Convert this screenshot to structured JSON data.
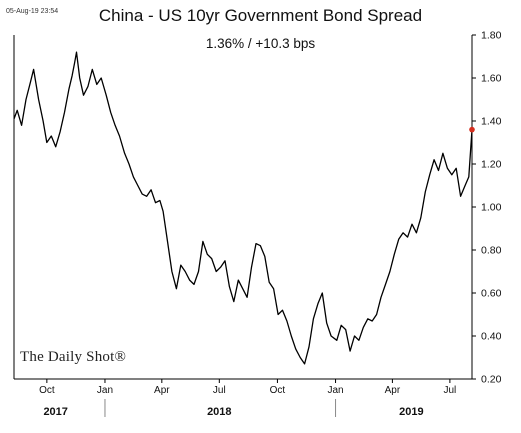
{
  "header": {
    "timestamp": "05-Aug-19 23:54",
    "brand": "The Daily Shot®"
  },
  "colors": {
    "line": "#000000",
    "last_point": "#d62f1f",
    "axis": "#000000",
    "text": "#111111"
  },
  "chart_data": {
    "type": "line",
    "title": "China - US 10yr Government Bond Spread",
    "subtitle": "1.36%  /  +10.3 bps",
    "xlabel": "",
    "ylabel": "",
    "y_axis_position": "right",
    "ylim": [
      0.2,
      1.8
    ],
    "y_ticks": [
      "0.20",
      "0.40",
      "0.60",
      "0.80",
      "1.00",
      "1.20",
      "1.40",
      "1.60",
      "1.80"
    ],
    "x_range": [
      "2017-08-10",
      "2019-08-05"
    ],
    "x_ticks": [
      {
        "date": "2017-10-01",
        "label": "Oct"
      },
      {
        "date": "2018-01-01",
        "label": "Jan"
      },
      {
        "date": "2018-04-01",
        "label": "Apr"
      },
      {
        "date": "2018-07-01",
        "label": "Jul"
      },
      {
        "date": "2018-10-01",
        "label": "Oct"
      },
      {
        "date": "2019-01-01",
        "label": "Jan"
      },
      {
        "date": "2019-04-01",
        "label": "Apr"
      },
      {
        "date": "2019-07-01",
        "label": "Jul"
      }
    ],
    "year_labels": [
      {
        "date": "2017-10-15",
        "label": "2017"
      },
      {
        "date": "2018-07-01",
        "label": "2018"
      },
      {
        "date": "2019-05-01",
        "label": "2019"
      }
    ],
    "year_separators": [
      "2018-01-01",
      "2019-01-01"
    ],
    "grid": false,
    "last_point": {
      "x": "2019-08-05",
      "y": 1.36
    },
    "series": [
      {
        "x": [
          "2017-08-10",
          "2017-08-15",
          "2017-08-22",
          "2017-08-29",
          "2017-09-05",
          "2017-09-10",
          "2017-09-18",
          "2017-09-25",
          "2017-10-01",
          "2017-10-08",
          "2017-10-15",
          "2017-10-22",
          "2017-10-29",
          "2017-11-05",
          "2017-11-10",
          "2017-11-14",
          "2017-11-17",
          "2017-11-22",
          "2017-11-28",
          "2017-12-05",
          "2017-12-12",
          "2017-12-19",
          "2017-12-26",
          "2018-01-03",
          "2018-01-10",
          "2018-01-17",
          "2018-01-24",
          "2018-02-01",
          "2018-02-08",
          "2018-02-15",
          "2018-02-22",
          "2018-03-01",
          "2018-03-08",
          "2018-03-15",
          "2018-03-22",
          "2018-03-29",
          "2018-04-03",
          "2018-04-10",
          "2018-04-17",
          "2018-04-24",
          "2018-05-01",
          "2018-05-08",
          "2018-05-15",
          "2018-05-22",
          "2018-05-29",
          "2018-06-05",
          "2018-06-12",
          "2018-06-19",
          "2018-06-26",
          "2018-07-03",
          "2018-07-10",
          "2018-07-17",
          "2018-07-24",
          "2018-07-31",
          "2018-08-07",
          "2018-08-14",
          "2018-08-21",
          "2018-08-28",
          "2018-09-04",
          "2018-09-11",
          "2018-09-18",
          "2018-09-25",
          "2018-10-02",
          "2018-10-09",
          "2018-10-16",
          "2018-10-23",
          "2018-10-30",
          "2018-11-06",
          "2018-11-13",
          "2018-11-20",
          "2018-11-27",
          "2018-12-04",
          "2018-12-11",
          "2018-12-18",
          "2018-12-25",
          "2019-01-03",
          "2019-01-10",
          "2019-01-17",
          "2019-01-24",
          "2019-01-31",
          "2019-02-07",
          "2019-02-14",
          "2019-02-21",
          "2019-02-28",
          "2019-03-07",
          "2019-03-14",
          "2019-03-21",
          "2019-03-28",
          "2019-04-04",
          "2019-04-11",
          "2019-04-18",
          "2019-04-25",
          "2019-05-02",
          "2019-05-09",
          "2019-05-16",
          "2019-05-23",
          "2019-05-30",
          "2019-06-06",
          "2019-06-13",
          "2019-06-20",
          "2019-06-27",
          "2019-07-04",
          "2019-07-11",
          "2019-07-18",
          "2019-07-25",
          "2019-07-31",
          "2019-08-05"
        ],
        "values": [
          1.41,
          1.45,
          1.38,
          1.5,
          1.58,
          1.64,
          1.5,
          1.4,
          1.3,
          1.33,
          1.28,
          1.35,
          1.44,
          1.55,
          1.61,
          1.67,
          1.72,
          1.6,
          1.52,
          1.56,
          1.64,
          1.57,
          1.6,
          1.52,
          1.44,
          1.38,
          1.33,
          1.25,
          1.2,
          1.14,
          1.1,
          1.06,
          1.05,
          1.08,
          1.02,
          1.03,
          0.98,
          0.84,
          0.7,
          0.62,
          0.73,
          0.7,
          0.66,
          0.64,
          0.7,
          0.84,
          0.78,
          0.76,
          0.7,
          0.72,
          0.75,
          0.63,
          0.56,
          0.66,
          0.62,
          0.58,
          0.72,
          0.83,
          0.82,
          0.77,
          0.65,
          0.62,
          0.5,
          0.52,
          0.47,
          0.4,
          0.34,
          0.3,
          0.27,
          0.35,
          0.48,
          0.55,
          0.6,
          0.46,
          0.4,
          0.38,
          0.45,
          0.43,
          0.33,
          0.4,
          0.38,
          0.44,
          0.48,
          0.47,
          0.5,
          0.58,
          0.64,
          0.7,
          0.78,
          0.85,
          0.88,
          0.86,
          0.92,
          0.88,
          0.95,
          1.07,
          1.15,
          1.22,
          1.17,
          1.25,
          1.18,
          1.15,
          1.18,
          1.05,
          1.1,
          1.14,
          1.36
        ]
      }
    ]
  }
}
